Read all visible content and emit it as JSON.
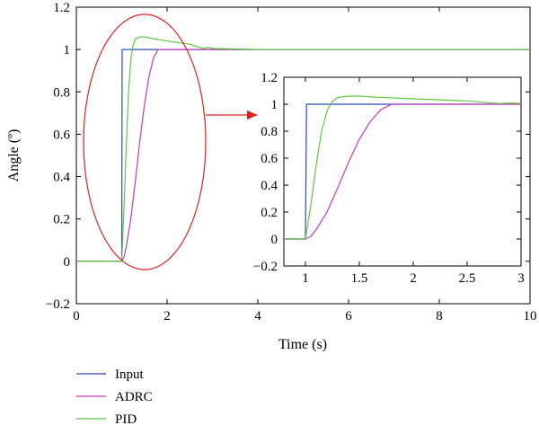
{
  "chart_data": {
    "type": "line",
    "main": {
      "xlabel": "Time (s)",
      "ylabel": "Angle (º)",
      "xlim": [
        0,
        10
      ],
      "ylim": [
        -0.2,
        1.2
      ],
      "xticks": [
        "0",
        "2",
        "4",
        "6",
        "8",
        "10"
      ],
      "yticks": [
        "−0.2",
        "0",
        "0.2",
        "0.4",
        "0.6",
        "0.8",
        "1",
        "1.2"
      ]
    },
    "inset": {
      "xlim": [
        0.8,
        3
      ],
      "ylim": [
        -0.2,
        1.2
      ],
      "xticks": [
        "1",
        "1.5",
        "2",
        "2.5",
        "3"
      ],
      "yticks": [
        "−0.2",
        "0",
        "0.2",
        "0.4",
        "0.6",
        "0.8",
        "1",
        "1.2"
      ]
    },
    "series": [
      {
        "name": "Input",
        "color": "#2b4db8",
        "x": [
          0,
          0.99,
          1.0,
          1.01,
          10
        ],
        "y": [
          0,
          0,
          0,
          1,
          1
        ]
      },
      {
        "name": "ADRC",
        "color": "#c838c0",
        "x": [
          0,
          1.0,
          1.05,
          1.1,
          1.2,
          1.3,
          1.4,
          1.5,
          1.6,
          1.7,
          1.8,
          2.0,
          3.0,
          10
        ],
        "y": [
          0,
          0,
          0.02,
          0.07,
          0.2,
          0.38,
          0.57,
          0.74,
          0.87,
          0.96,
          1.0,
          1.0,
          1.0,
          1.0
        ]
      },
      {
        "name": "PID",
        "color": "#5cc840",
        "x": [
          0,
          1.0,
          1.05,
          1.1,
          1.15,
          1.2,
          1.25,
          1.3,
          1.4,
          1.5,
          1.6,
          2.0,
          2.5,
          2.8,
          2.9,
          3.0,
          4.0,
          10
        ],
        "y": [
          0,
          0,
          0.25,
          0.55,
          0.8,
          0.95,
          1.02,
          1.05,
          1.06,
          1.06,
          1.055,
          1.04,
          1.025,
          1.005,
          1.01,
          1.005,
          1.0,
          1.0
        ]
      }
    ],
    "legend": [
      "Input",
      "ADRC",
      "PID"
    ],
    "annotation": {
      "ellipse_color": "#e02020",
      "arrow_color": "#e02020"
    }
  }
}
